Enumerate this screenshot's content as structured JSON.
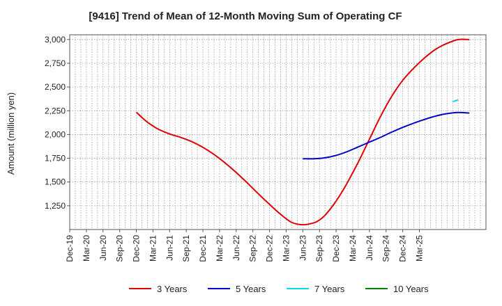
{
  "chart_data": {
    "type": "line",
    "title": "[9416]  Trend of Mean of 12-Month Moving Sum of Operating CF",
    "xlabel": "",
    "ylabel": "Amount (million yen)",
    "ylim": [
      1000,
      3050
    ],
    "yticks": [
      1250,
      1500,
      1750,
      2000,
      2250,
      2500,
      2750,
      3000
    ],
    "ytick_labels": [
      "1,250",
      "1,500",
      "1,750",
      "2,000",
      "2,250",
      "2,500",
      "2,750",
      "3,000"
    ],
    "xlim": [
      0,
      75
    ],
    "xtick_labels": [
      "Dec-19",
      "Mar-20",
      "Jun-20",
      "Sep-20",
      "Dec-20",
      "Mar-21",
      "Jun-21",
      "Sep-21",
      "Dec-21",
      "Mar-22",
      "Jun-22",
      "Sep-22",
      "Dec-22",
      "Mar-23",
      "Jun-23",
      "Sep-23",
      "Dec-23",
      "Mar-24",
      "Jun-24",
      "Sep-24",
      "Dec-24",
      "Mar-25"
    ],
    "grid": true,
    "series": [
      {
        "name": "3 Years",
        "color": "#e00000",
        "x": [
          12,
          13,
          14,
          15,
          16,
          18,
          20,
          22,
          24,
          26,
          28,
          30,
          32,
          34,
          36,
          38,
          40,
          42,
          44,
          45,
          46,
          47,
          48,
          49,
          50,
          52,
          54,
          56,
          58,
          60,
          62,
          64,
          66,
          68,
          70,
          72
        ],
        "y": [
          2235,
          2180,
          2130,
          2090,
          2055,
          2005,
          1970,
          1925,
          1865,
          1790,
          1700,
          1600,
          1490,
          1375,
          1265,
          1160,
          1075,
          1050,
          1070,
          1100,
          1150,
          1220,
          1300,
          1390,
          1490,
          1710,
          1950,
          2190,
          2400,
          2570,
          2700,
          2810,
          2900,
          2960,
          3000,
          3000
        ]
      },
      {
        "name": "5 Years",
        "color": "#0000cc",
        "x": [
          42,
          44,
          46,
          48,
          50,
          52,
          54,
          56,
          58,
          60,
          62,
          64,
          66,
          68,
          70,
          72
        ],
        "y": [
          1745,
          1745,
          1755,
          1780,
          1820,
          1870,
          1920,
          1970,
          2025,
          2075,
          2120,
          2160,
          2195,
          2220,
          2232,
          2225
        ]
      },
      {
        "name": "7 Years",
        "color": "#00e0e0",
        "x": [
          69,
          70
        ],
        "y": [
          2345,
          2365
        ]
      },
      {
        "name": "10 Years",
        "color": "#008000",
        "x": [],
        "y": []
      }
    ]
  }
}
